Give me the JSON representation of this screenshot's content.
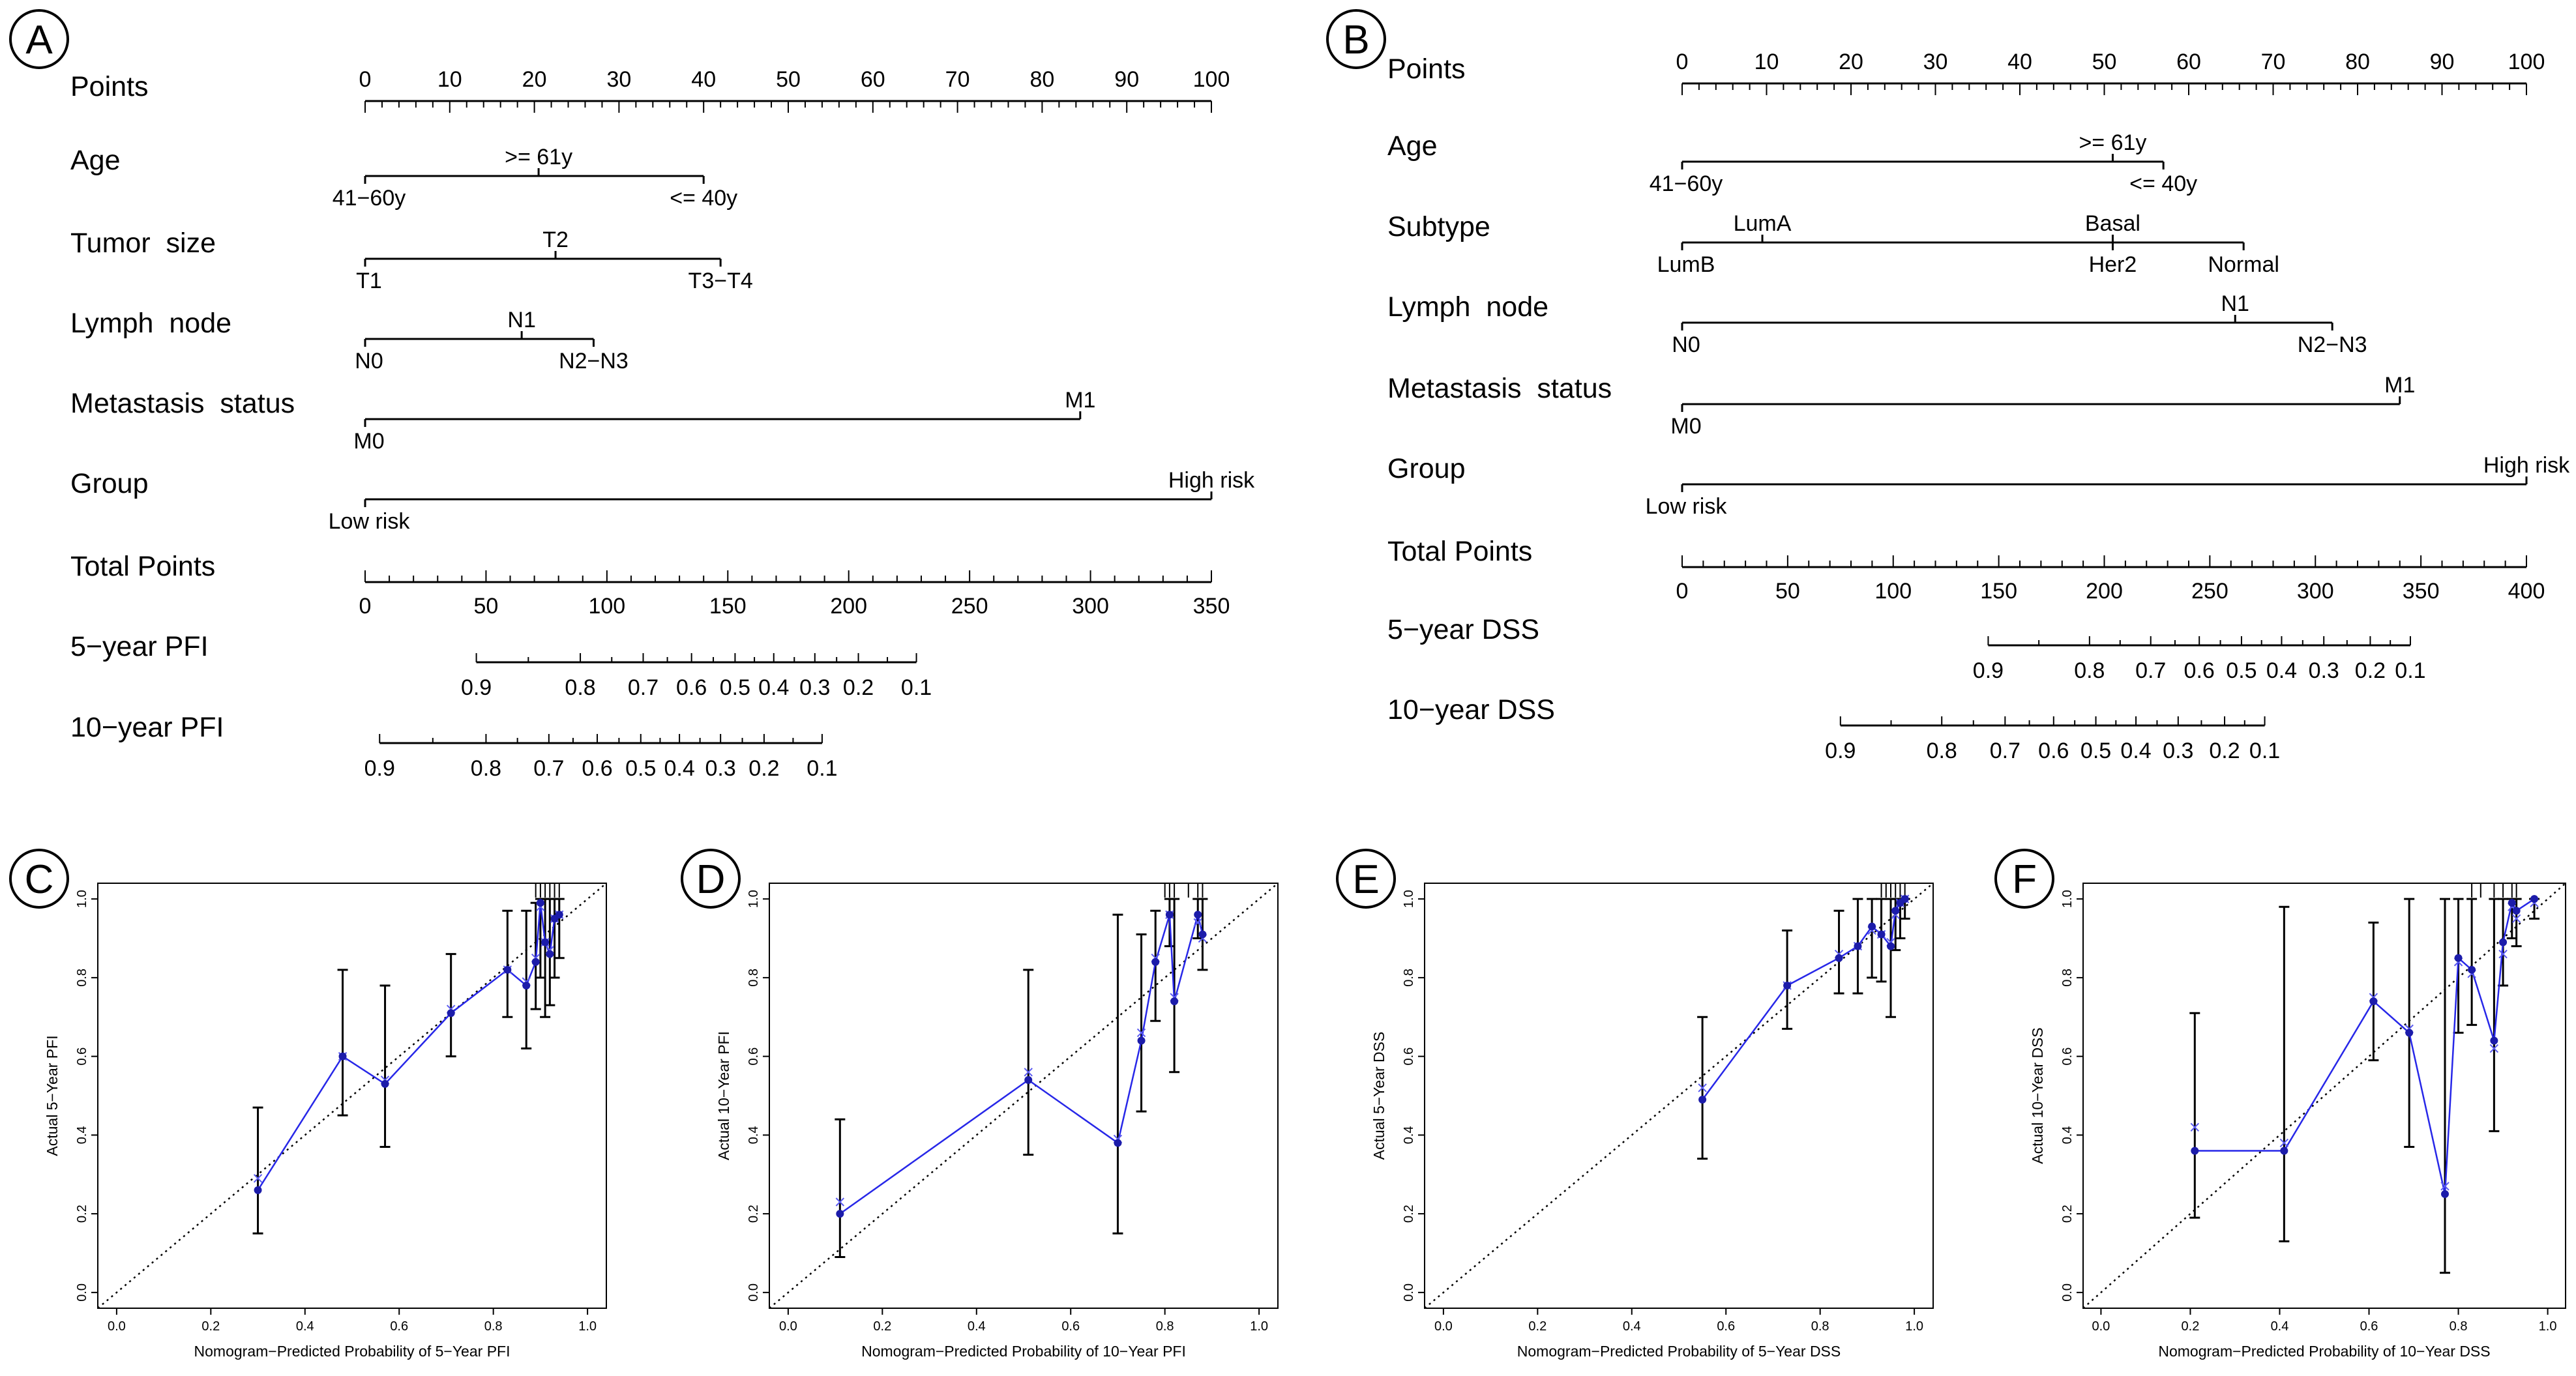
{
  "panels": [
    {
      "letter": "A"
    },
    {
      "letter": "B"
    },
    {
      "letter": "C"
    },
    {
      "letter": "D"
    },
    {
      "letter": "E"
    },
    {
      "letter": "F"
    }
  ],
  "chart_data": [
    {
      "type": "nomogram",
      "panel": "A",
      "points_axis": {
        "label": "Points",
        "min": 0,
        "max": 100,
        "ticks": [
          0,
          10,
          20,
          30,
          40,
          50,
          60,
          70,
          80,
          90,
          100
        ]
      },
      "variables": [
        {
          "label": "Age",
          "levels": [
            {
              "name": "41−60y",
              "points": 0
            },
            {
              "name": ">= 61y",
              "points": 20.5
            },
            {
              "name": "<= 40y",
              "points": 40
            }
          ]
        },
        {
          "label": "Tumor  size",
          "levels": [
            {
              "name": "T1",
              "points": 0
            },
            {
              "name": "T2",
              "points": 22.5
            },
            {
              "name": "T3−T4",
              "points": 42
            }
          ]
        },
        {
          "label": "Lymph  node",
          "levels": [
            {
              "name": "N0",
              "points": 0
            },
            {
              "name": "N1",
              "points": 18.5
            },
            {
              "name": "N2−N3",
              "points": 27
            }
          ]
        },
        {
          "label": "Metastasis  status",
          "levels": [
            {
              "name": "M0",
              "points": 0
            },
            {
              "name": "M1",
              "points": 84.5
            }
          ]
        },
        {
          "label": "Group",
          "levels": [
            {
              "name": "Low risk",
              "points": 0
            },
            {
              "name": "High risk",
              "points": 100
            }
          ]
        }
      ],
      "total_points": {
        "label": "Total Points",
        "min": 0,
        "max": 350,
        "ticks": [
          0,
          50,
          100,
          150,
          200,
          250,
          300,
          350
        ]
      },
      "outcomes": [
        {
          "label": "5−year PFI",
          "probabilities": [
            0.9,
            0.8,
            0.7,
            0.6,
            0.5,
            0.4,
            0.3,
            0.2,
            0.1
          ],
          "total_points": [
            46,
            89,
            115,
            135,
            153,
            169,
            186,
            204,
            228
          ]
        },
        {
          "label": "10−year PFI",
          "probabilities": [
            0.9,
            0.8,
            0.7,
            0.6,
            0.5,
            0.4,
            0.3,
            0.2,
            0.1
          ],
          "total_points": [
            6,
            50,
            76,
            96,
            114,
            130,
            147,
            165,
            189
          ]
        }
      ]
    },
    {
      "type": "nomogram",
      "panel": "B",
      "points_axis": {
        "label": "Points",
        "min": 0,
        "max": 100,
        "ticks": [
          0,
          10,
          20,
          30,
          40,
          50,
          60,
          70,
          80,
          90,
          100
        ]
      },
      "variables": [
        {
          "label": "Age",
          "levels": [
            {
              "name": "41−60y",
              "points": 0
            },
            {
              "name": ">= 61y",
              "points": 51
            },
            {
              "name": "<= 40y",
              "points": 57
            }
          ]
        },
        {
          "label": "Subtype",
          "levels": [
            {
              "name": "LumB",
              "points": 0
            },
            {
              "name": "LumA",
              "points": 9.5
            },
            {
              "name": "Basal",
              "points": 51
            },
            {
              "name": "Her2",
              "points": 51
            },
            {
              "name": "Normal",
              "points": 66.5
            }
          ]
        },
        {
          "label": "Lymph  node",
          "levels": [
            {
              "name": "N0",
              "points": 0
            },
            {
              "name": "N1",
              "points": 65.5
            },
            {
              "name": "N2−N3",
              "points": 77
            }
          ]
        },
        {
          "label": "Metastasis  status",
          "levels": [
            {
              "name": "M0",
              "points": 0
            },
            {
              "name": "M1",
              "points": 85
            }
          ]
        },
        {
          "label": "Group",
          "levels": [
            {
              "name": "Low risk",
              "points": 0
            },
            {
              "name": "High risk",
              "points": 100
            }
          ]
        }
      ],
      "total_points": {
        "label": "Total Points",
        "min": 0,
        "max": 400,
        "ticks": [
          0,
          50,
          100,
          150,
          200,
          250,
          300,
          350,
          400
        ]
      },
      "outcomes": [
        {
          "label": "5−year DSS",
          "probabilities": [
            0.9,
            0.8,
            0.7,
            0.6,
            0.5,
            0.4,
            0.3,
            0.2,
            0.1
          ],
          "total_points": [
            145,
            193,
            222,
            245,
            265,
            284,
            304,
            326,
            345
          ]
        },
        {
          "label": "10−year DSS",
          "probabilities": [
            0.9,
            0.8,
            0.7,
            0.6,
            0.5,
            0.4,
            0.3,
            0.2,
            0.1
          ],
          "total_points": [
            75,
            123,
            153,
            176,
            196,
            215,
            235,
            257,
            276
          ]
        }
      ]
    },
    {
      "type": "calibration",
      "panel": "C",
      "xlabel": "Nomogram−Predicted Probability of 5−Year PFI",
      "ylabel": "Actual 5−Year PFI",
      "xlim": [
        0,
        1
      ],
      "ylim": [
        0,
        1
      ],
      "xticks": [
        0.0,
        0.2,
        0.4,
        0.6,
        0.8,
        1.0
      ],
      "yticks": [
        0.0,
        0.2,
        0.4,
        0.6,
        0.8,
        1.0
      ],
      "series": [
        {
          "name": "observed",
          "points": [
            {
              "x": 0.3,
              "y": 0.26,
              "lo": 0.15,
              "hi": 0.47
            },
            {
              "x": 0.48,
              "y": 0.6,
              "lo": 0.45,
              "hi": 0.82
            },
            {
              "x": 0.57,
              "y": 0.53,
              "lo": 0.37,
              "hi": 0.78
            },
            {
              "x": 0.71,
              "y": 0.71,
              "lo": 0.6,
              "hi": 0.86
            },
            {
              "x": 0.83,
              "y": 0.82,
              "lo": 0.7,
              "hi": 0.97
            },
            {
              "x": 0.87,
              "y": 0.78,
              "lo": 0.62,
              "hi": 0.97
            },
            {
              "x": 0.89,
              "y": 0.84,
              "lo": 0.72,
              "hi": 0.99
            },
            {
              "x": 0.9,
              "y": 0.99,
              "lo": 0.8,
              "hi": 1.0
            },
            {
              "x": 0.91,
              "y": 0.89,
              "lo": 0.7,
              "hi": 1.0
            },
            {
              "x": 0.92,
              "y": 0.86,
              "lo": 0.73,
              "hi": 1.0
            },
            {
              "x": 0.93,
              "y": 0.95,
              "lo": 0.8,
              "hi": 1.0
            },
            {
              "x": 0.94,
              "y": 0.96,
              "lo": 0.85,
              "hi": 1.0
            }
          ]
        }
      ],
      "bias_corrected": [
        0.29,
        0.6,
        0.54,
        0.72,
        0.82,
        0.79,
        0.85,
        0.98,
        0.89,
        0.87,
        0.95,
        0.96
      ],
      "rug": [
        0.89,
        0.9,
        0.91,
        0.92,
        0.93,
        0.94
      ]
    },
    {
      "type": "calibration",
      "panel": "D",
      "xlabel": "Nomogram−Predicted Probability of 10−Year PFI",
      "ylabel": "Actual 10−Year PFI",
      "xlim": [
        0,
        1
      ],
      "ylim": [
        0,
        1
      ],
      "xticks": [
        0.0,
        0.2,
        0.4,
        0.6,
        0.8,
        1.0
      ],
      "yticks": [
        0.0,
        0.2,
        0.4,
        0.6,
        0.8,
        1.0
      ],
      "series": [
        {
          "name": "observed",
          "points": [
            {
              "x": 0.11,
              "y": 0.2,
              "lo": 0.09,
              "hi": 0.44
            },
            {
              "x": 0.51,
              "y": 0.54,
              "lo": 0.35,
              "hi": 0.82
            },
            {
              "x": 0.7,
              "y": 0.38,
              "lo": 0.15,
              "hi": 0.96
            },
            {
              "x": 0.75,
              "y": 0.64,
              "lo": 0.46,
              "hi": 0.91
            },
            {
              "x": 0.78,
              "y": 0.84,
              "lo": 0.69,
              "hi": 0.97
            },
            {
              "x": 0.81,
              "y": 0.96,
              "lo": 0.88,
              "hi": 1.0
            },
            {
              "x": 0.82,
              "y": 0.74,
              "lo": 0.56,
              "hi": 1.0
            },
            {
              "x": 0.87,
              "y": 0.96,
              "lo": 0.9,
              "hi": 1.0
            },
            {
              "x": 0.88,
              "y": 0.91,
              "lo": 0.82,
              "hi": 1.0
            }
          ]
        }
      ],
      "bias_corrected": [
        0.23,
        0.56,
        0.39,
        0.66,
        0.85,
        0.96,
        0.75,
        0.94,
        0.9
      ],
      "rug": [
        0.8,
        0.81,
        0.82,
        0.85,
        0.87,
        0.88
      ]
    },
    {
      "type": "calibration",
      "panel": "E",
      "xlabel": "Nomogram−Predicted Probability of 5−Year DSS",
      "ylabel": "Actual 5−Year DSS",
      "xlim": [
        0,
        1
      ],
      "ylim": [
        0,
        1
      ],
      "xticks": [
        0.0,
        0.2,
        0.4,
        0.6,
        0.8,
        1.0
      ],
      "yticks": [
        0.0,
        0.2,
        0.4,
        0.6,
        0.8,
        1.0
      ],
      "series": [
        {
          "name": "observed",
          "points": [
            {
              "x": 0.55,
              "y": 0.49,
              "lo": 0.34,
              "hi": 0.7
            },
            {
              "x": 0.73,
              "y": 0.78,
              "lo": 0.67,
              "hi": 0.92
            },
            {
              "x": 0.84,
              "y": 0.85,
              "lo": 0.76,
              "hi": 0.97
            },
            {
              "x": 0.88,
              "y": 0.88,
              "lo": 0.76,
              "hi": 1.0
            },
            {
              "x": 0.91,
              "y": 0.93,
              "lo": 0.8,
              "hi": 1.0
            },
            {
              "x": 0.93,
              "y": 0.91,
              "lo": 0.79,
              "hi": 1.0
            },
            {
              "x": 0.95,
              "y": 0.88,
              "lo": 0.7,
              "hi": 1.0
            },
            {
              "x": 0.96,
              "y": 0.97,
              "lo": 0.87,
              "hi": 1.0
            },
            {
              "x": 0.97,
              "y": 0.99,
              "lo": 0.9,
              "hi": 1.0
            },
            {
              "x": 0.98,
              "y": 1.0,
              "lo": 0.95,
              "hi": 1.0
            }
          ]
        }
      ],
      "bias_corrected": [
        0.52,
        0.78,
        0.86,
        0.88,
        0.92,
        0.91,
        0.89,
        0.96,
        0.99,
        1.0
      ],
      "rug": [
        0.93,
        0.94,
        0.95,
        0.96,
        0.97,
        0.98
      ]
    },
    {
      "type": "calibration",
      "panel": "F",
      "xlabel": "Nomogram−Predicted Probability of 10−Year DSS",
      "ylabel": "Actual 10−Year DSS",
      "xlim": [
        0,
        1
      ],
      "ylim": [
        0,
        1
      ],
      "xticks": [
        0.0,
        0.2,
        0.4,
        0.6,
        0.8,
        1.0
      ],
      "yticks": [
        0.0,
        0.2,
        0.4,
        0.6,
        0.8,
        1.0
      ],
      "series": [
        {
          "name": "observed",
          "points": [
            {
              "x": 0.21,
              "y": 0.36,
              "lo": 0.19,
              "hi": 0.71
            },
            {
              "x": 0.41,
              "y": 0.36,
              "lo": 0.13,
              "hi": 0.98
            },
            {
              "x": 0.61,
              "y": 0.74,
              "lo": 0.59,
              "hi": 0.94
            },
            {
              "x": 0.69,
              "y": 0.66,
              "lo": 0.37,
              "hi": 1.0
            },
            {
              "x": 0.77,
              "y": 0.25,
              "lo": 0.05,
              "hi": 1.0
            },
            {
              "x": 0.8,
              "y": 0.85,
              "lo": 0.66,
              "hi": 1.0
            },
            {
              "x": 0.83,
              "y": 0.82,
              "lo": 0.68,
              "hi": 1.0
            },
            {
              "x": 0.88,
              "y": 0.64,
              "lo": 0.41,
              "hi": 1.0
            },
            {
              "x": 0.9,
              "y": 0.89,
              "lo": 0.78,
              "hi": 1.0
            },
            {
              "x": 0.92,
              "y": 0.99,
              "lo": 0.9,
              "hi": 1.0
            },
            {
              "x": 0.93,
              "y": 0.97,
              "lo": 0.88,
              "hi": 1.0
            },
            {
              "x": 0.97,
              "y": 1.0,
              "lo": 0.95,
              "hi": 1.0
            }
          ]
        }
      ],
      "bias_corrected": [
        0.42,
        0.38,
        0.75,
        0.67,
        0.27,
        0.84,
        0.81,
        0.62,
        0.86,
        0.98,
        0.95,
        0.99
      ],
      "rug": [
        0.83,
        0.85,
        0.88,
        0.9,
        0.92,
        0.93
      ]
    }
  ]
}
